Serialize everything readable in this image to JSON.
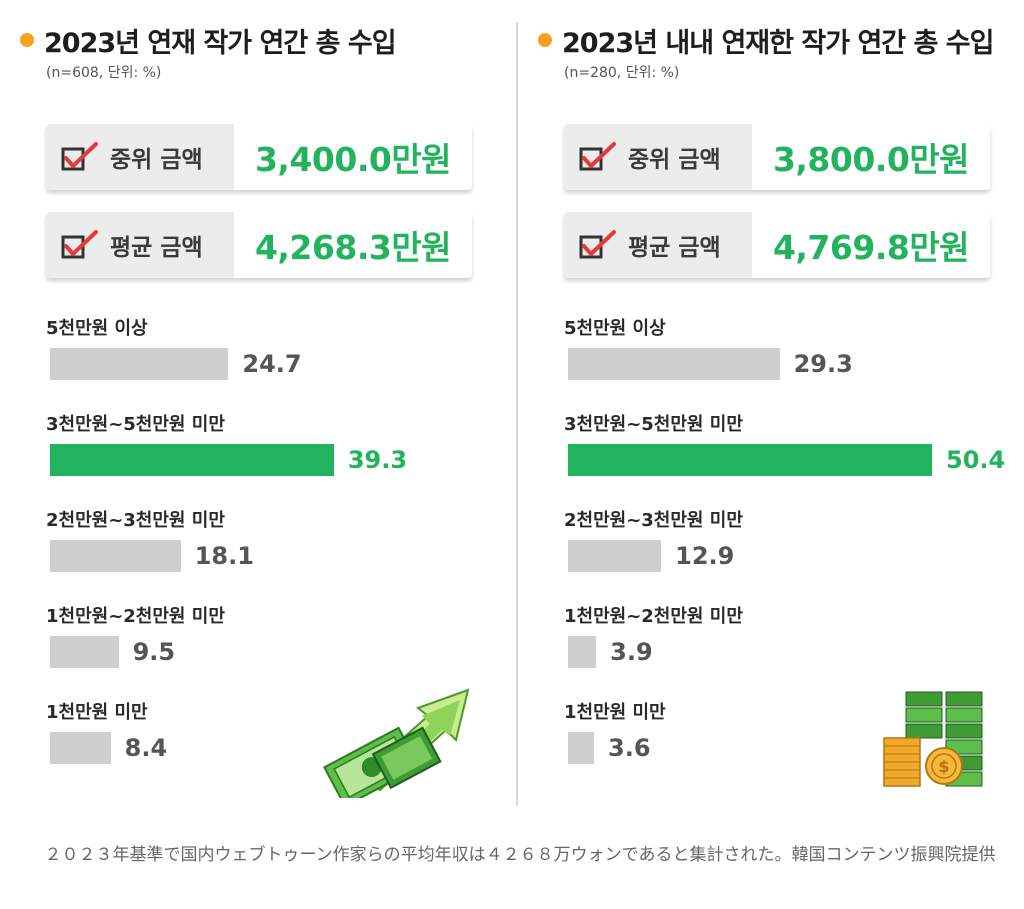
{
  "left": {
    "title": "2023년 연재 작가 연간 총 수입",
    "subtitle": "(n=608, 단위: %)",
    "median_label": "중위 금액",
    "median_value": "3,400.0만원",
    "mean_label": "평균 금액",
    "mean_value": "4,268.3만원"
  },
  "right": {
    "title": "2023년 내내 연재한 작가 연간 총 수입",
    "subtitle": "(n=280, 단위: %)",
    "median_label": "중위 금액",
    "median_value": "3,800.0만원",
    "mean_label": "평균 금액",
    "mean_value": "4,769.8만원"
  },
  "caption": "２０２３年基準で国内ウェブトゥーン作家らの平均年収は４２６８万ウォンであると集計された。韓国コンテンツ振興院提供",
  "colors": {
    "accent": "#22b35e",
    "bar_default": "#cfcfcf",
    "dot": "#f7a01d"
  },
  "chart_data": [
    {
      "type": "bar",
      "orientation": "horizontal",
      "title": "2023년 연재 작가 연간 총 수입",
      "unit": "%",
      "categories": [
        "5천만원 이상",
        "3천만원~5천만원 미만",
        "2천만원~3천만원 미만",
        "1천만원~2천만원 미만",
        "1천만원 미만"
      ],
      "values": [
        24.7,
        39.3,
        18.1,
        9.5,
        8.4
      ],
      "value_labels": [
        "24.7",
        "39.3",
        "18.1",
        "9.5",
        "8.4"
      ],
      "highlight_index": 1,
      "xlim": [
        0,
        50.4
      ]
    },
    {
      "type": "bar",
      "orientation": "horizontal",
      "title": "2023년 내내 연재한 작가 연간 총 수입",
      "unit": "%",
      "categories": [
        "5천만원 이상",
        "3천만원~5천만원 미만",
        "2천만원~3천만원 미만",
        "1천만원~2천만원 미만",
        "1천만원 미만"
      ],
      "values": [
        29.3,
        50.4,
        12.9,
        3.9,
        3.6
      ],
      "value_labels": [
        "29.3",
        "50.4",
        "12.9",
        "3.9",
        "3.6"
      ],
      "highlight_index": 1,
      "xlim": [
        0,
        50.4
      ]
    }
  ]
}
